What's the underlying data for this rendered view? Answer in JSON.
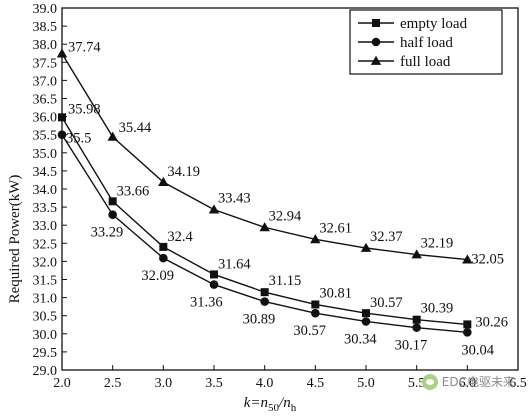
{
  "chart_data": {
    "type": "line",
    "xlabel": "k=n50/nh",
    "ylabel": "Required Power(kW)",
    "xlim": [
      2.0,
      6.5
    ],
    "ylim": [
      29.0,
      39.0
    ],
    "x_ticks": [
      "2.0",
      "2.5",
      "3.0",
      "3.5",
      "4.0",
      "4.5",
      "5.0",
      "5.5",
      "6.0",
      "6.5"
    ],
    "y_ticks": [
      "29.0",
      "29.5",
      "30.0",
      "30.5",
      "31.0",
      "31.5",
      "32.0",
      "32.5",
      "33.0",
      "33.5",
      "34.0",
      "34.5",
      "35.0",
      "35.5",
      "36.0",
      "36.5",
      "37.0",
      "37.5",
      "38.0",
      "38.5",
      "39.0"
    ],
    "grid": false,
    "legend_position": "top-right",
    "x": [
      2.0,
      2.5,
      3.0,
      3.5,
      4.0,
      4.5,
      5.0,
      5.5,
      6.0
    ],
    "series": [
      {
        "name": "empty load",
        "marker": "square",
        "values": [
          35.98,
          33.66,
          32.4,
          31.64,
          31.15,
          30.81,
          30.57,
          30.39,
          30.26
        ],
        "labels": [
          "35.98",
          "33.66",
          "32.4",
          "31.64",
          "31.15",
          "30.81",
          "30.57",
          "30.39",
          "30.26"
        ]
      },
      {
        "name": "half load",
        "marker": "circle",
        "values": [
          35.5,
          33.29,
          32.09,
          31.36,
          30.89,
          30.57,
          30.34,
          30.17,
          30.04
        ],
        "labels": [
          "35.5",
          "33.29",
          "32.09",
          "31.36",
          "30.89",
          "30.57",
          "30.34",
          "30.17",
          "30.04"
        ]
      },
      {
        "name": "full load",
        "marker": "triangle",
        "values": [
          37.74,
          35.44,
          34.19,
          33.43,
          32.94,
          32.61,
          32.37,
          32.19,
          32.05
        ],
        "labels": [
          "37.74",
          "35.44",
          "34.19",
          "33.43",
          "32.94",
          "32.61",
          "32.37",
          "32.19",
          "32.05"
        ]
      }
    ]
  },
  "watermark": {
    "text": "EDC电驱未来",
    "icon": "wechat-icon"
  }
}
